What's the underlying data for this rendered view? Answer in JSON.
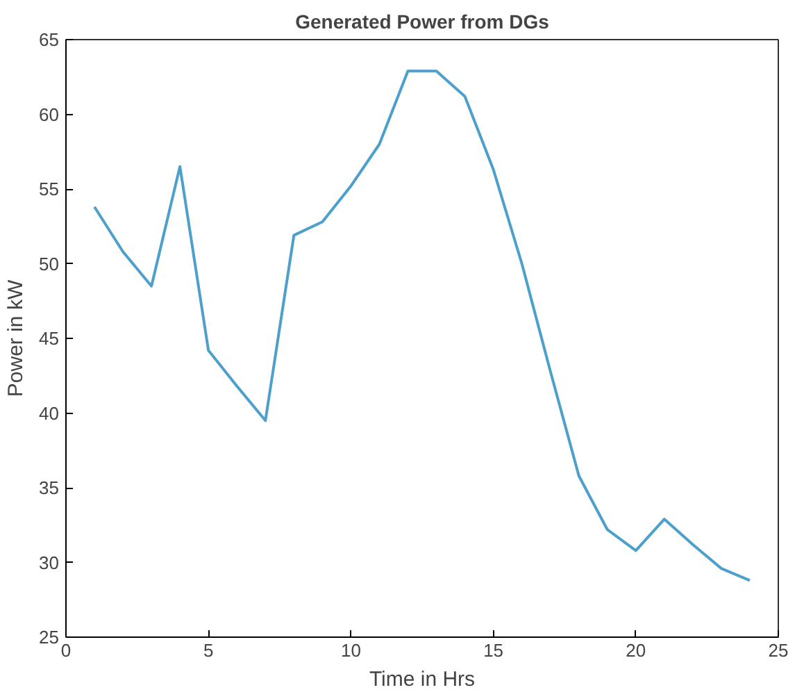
{
  "chart_data": {
    "type": "line",
    "title": "Generated Power from DGs",
    "xlabel": "Time in Hrs",
    "ylabel": "Power in kW",
    "x": [
      1,
      2,
      3,
      4,
      5,
      6,
      7,
      8,
      9,
      10,
      11,
      12,
      13,
      14,
      15,
      16,
      17,
      18,
      19,
      20,
      21,
      22,
      23,
      24
    ],
    "series": [
      {
        "color": "#4d9fcc",
        "values": [
          53.8,
          50.8,
          48.5,
          56.5,
          44.2,
          41.8,
          39.5,
          51.9,
          52.8,
          55.2,
          58.0,
          62.9,
          62.9,
          61.2,
          56.3,
          50.0,
          42.8,
          35.8,
          32.2,
          30.8,
          32.9,
          31.2,
          29.6,
          28.8
        ]
      }
    ],
    "xlim": [
      0,
      25
    ],
    "xticks": [
      0,
      5,
      10,
      15,
      20,
      25
    ],
    "ylim": [
      25,
      65
    ],
    "yticks": [
      25,
      30,
      35,
      40,
      45,
      50,
      55,
      60,
      65
    ],
    "grid": false
  }
}
